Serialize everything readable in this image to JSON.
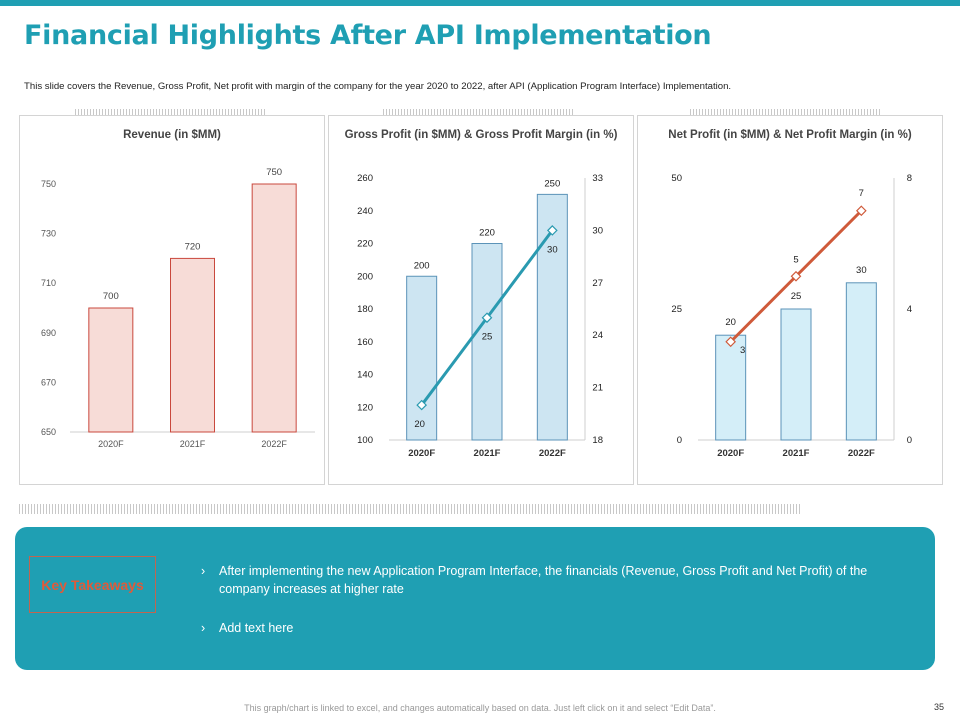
{
  "header": {
    "title": "Financial Highlights After API Implementation",
    "subtitle": "This slide covers the Revenue, Gross Profit, Net profit with margin of the company for the year 2020 to 2022, after API (Application Program Interface) Implementation."
  },
  "colors": {
    "accent": "#1f9fb3",
    "revenue_bar": "#f7dcd7",
    "revenue_border": "#c9483d",
    "gp_bar": "#cde5f2",
    "gp_line": "#2a9ab0",
    "np_bar": "#d4eef8",
    "np_line": "#cf5a3a"
  },
  "chart_data": [
    {
      "type": "bar",
      "title": "Revenue (in $MM)",
      "categories": [
        "2020F",
        "2021F",
        "2022F"
      ],
      "values": [
        700,
        720,
        750
      ],
      "ylim": [
        650,
        750
      ],
      "yticks": [
        650,
        670,
        690,
        710,
        730,
        750
      ],
      "xlabel": "",
      "ylabel": ""
    },
    {
      "type": "bar",
      "title": "Gross Profit (in $MM) & Gross Profit Margin (in %)",
      "categories": [
        "2020F",
        "2021F",
        "2022F"
      ],
      "series": [
        {
          "name": "Gross Profit",
          "kind": "bar",
          "axis": "left",
          "values": [
            200,
            220,
            250
          ]
        },
        {
          "name": "Gross Profit Margin",
          "kind": "line",
          "axis": "right",
          "values": [
            20,
            25,
            30
          ]
        }
      ],
      "ylim": [
        100,
        260
      ],
      "yticks": [
        100,
        120,
        140,
        160,
        180,
        200,
        220,
        240,
        260
      ],
      "y2lim": [
        18,
        33
      ],
      "y2ticks": [
        18,
        21,
        24,
        27,
        30,
        33
      ]
    },
    {
      "type": "bar",
      "title": "Net Profit (in $MM) & Net Profit Margin (in %)",
      "categories": [
        "2020F",
        "2021F",
        "2022F"
      ],
      "series": [
        {
          "name": "Net Profit",
          "kind": "bar",
          "axis": "left",
          "values": [
            20,
            25,
            30
          ]
        },
        {
          "name": "Net Profit Margin",
          "kind": "line",
          "axis": "right",
          "values": [
            3,
            5,
            7
          ]
        }
      ],
      "ylim": [
        0,
        50
      ],
      "yticks": [
        0,
        25,
        50
      ],
      "y2lim": [
        0,
        8
      ],
      "y2ticks": [
        0,
        4,
        8
      ]
    }
  ],
  "takeaways": {
    "label": "Key Takeaways",
    "bullet_icon": "›",
    "items": [
      "After implementing the new Application Program Interface, the financials (Revenue, Gross Profit and Net Profit) of the company increases at higher rate",
      "Add text here"
    ]
  },
  "footer": {
    "note": "This graph/chart is linked to excel, and changes automatically based on data. Just left click on it and select “Edit Data”.",
    "page": "35"
  }
}
